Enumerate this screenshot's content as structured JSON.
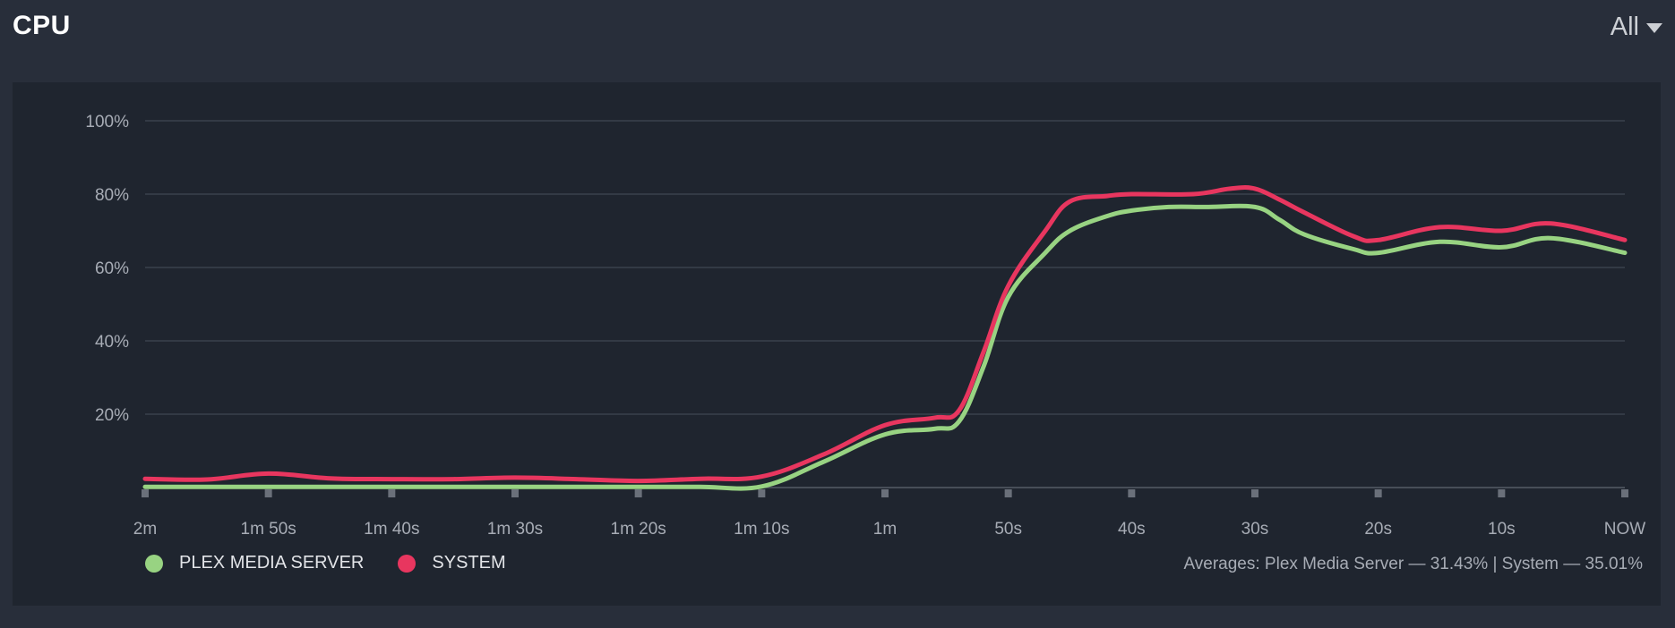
{
  "header": {
    "title": "CPU",
    "filter_value": "All"
  },
  "colors": {
    "background": "#282e3a",
    "panel": "#1f252f",
    "grid": "#3a414d",
    "plex": "#98d382",
    "system": "#e8365f"
  },
  "legend": {
    "items": [
      {
        "label": "PLEX MEDIA SERVER",
        "color": "#98d382"
      },
      {
        "label": "SYSTEM",
        "color": "#e8365f"
      }
    ]
  },
  "averages": {
    "text": "Averages: Plex Media Server — 31.43% | System — 35.01%"
  },
  "chart_data": {
    "type": "line",
    "ylim": [
      0,
      100
    ],
    "yticks": [
      20,
      40,
      60,
      80,
      100
    ],
    "ytick_labels": [
      "20%",
      "40%",
      "60%",
      "80%",
      "100%"
    ],
    "xlim": [
      120,
      0
    ],
    "xticks": [
      120,
      110,
      100,
      90,
      80,
      70,
      60,
      50,
      40,
      30,
      20,
      10,
      0
    ],
    "xtick_labels": [
      "2m",
      "1m 50s",
      "1m 40s",
      "1m 30s",
      "1m 20s",
      "1m 10s",
      "1m",
      "50s",
      "40s",
      "30s",
      "20s",
      "10s",
      "NOW"
    ],
    "grid": true,
    "legend_position": "bottom-left",
    "series": [
      {
        "name": "PLEX MEDIA SERVER",
        "color": "#98d382",
        "points": [
          [
            120,
            0.2
          ],
          [
            115,
            0.2
          ],
          [
            110,
            0.2
          ],
          [
            105,
            0.2
          ],
          [
            100,
            0.2
          ],
          [
            95,
            0.2
          ],
          [
            90,
            0.2
          ],
          [
            85,
            0.2
          ],
          [
            80,
            0.2
          ],
          [
            75,
            0.2
          ],
          [
            70,
            0.3
          ],
          [
            65,
            7
          ],
          [
            60,
            14.5
          ],
          [
            56,
            16
          ],
          [
            54,
            18
          ],
          [
            52,
            33
          ],
          [
            50,
            52
          ],
          [
            47,
            64
          ],
          [
            45,
            70
          ],
          [
            42,
            74
          ],
          [
            40,
            75.5
          ],
          [
            37,
            76.5
          ],
          [
            34,
            76.5
          ],
          [
            30,
            76.5
          ],
          [
            28,
            73
          ],
          [
            26,
            69
          ],
          [
            22,
            65
          ],
          [
            20,
            64
          ],
          [
            15,
            67
          ],
          [
            10,
            65.5
          ],
          [
            6,
            68
          ],
          [
            0,
            64
          ]
        ]
      },
      {
        "name": "SYSTEM",
        "color": "#e8365f",
        "points": [
          [
            120,
            2.4
          ],
          [
            115,
            2.2
          ],
          [
            110,
            3.8
          ],
          [
            105,
            2.5
          ],
          [
            100,
            2.3
          ],
          [
            95,
            2.3
          ],
          [
            90,
            2.7
          ],
          [
            85,
            2.3
          ],
          [
            80,
            1.8
          ],
          [
            75,
            2.4
          ],
          [
            70,
            3.0
          ],
          [
            65,
            9
          ],
          [
            60,
            17
          ],
          [
            56,
            19
          ],
          [
            54,
            21
          ],
          [
            52,
            37
          ],
          [
            50,
            55
          ],
          [
            47,
            70
          ],
          [
            45,
            78
          ],
          [
            42,
            79.5
          ],
          [
            40,
            80
          ],
          [
            35,
            80
          ],
          [
            32,
            81.5
          ],
          [
            30,
            81.5
          ],
          [
            28,
            78.5
          ],
          [
            26,
            75
          ],
          [
            22,
            68.5
          ],
          [
            20,
            67.5
          ],
          [
            15,
            71
          ],
          [
            10,
            70
          ],
          [
            6,
            72
          ],
          [
            0,
            67.5
          ]
        ]
      }
    ]
  }
}
